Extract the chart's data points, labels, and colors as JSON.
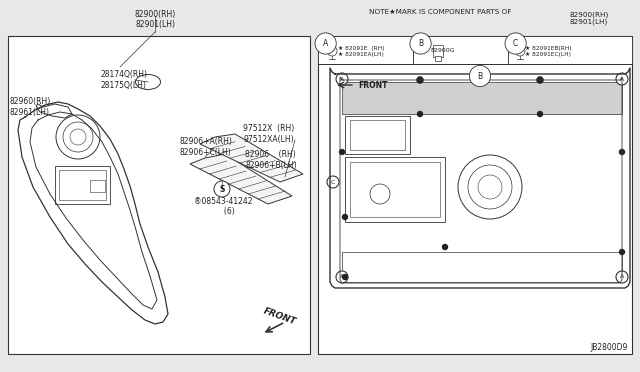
{
  "bg_color": "#e8e8e8",
  "diagram_bg": "#ffffff",
  "line_color": "#333333",
  "text_color": "#222222",
  "note_text": "NOTE★MARK IS COMPONENT PARTS OF",
  "note_parts": "82900(RH)\n82901(LH)",
  "part_label_main": "82900(RH)\n82901(LH)",
  "part_82960": "82960(RH)\n82961(LH)",
  "part_82906A": "82906+A(RH)\n82906+C(LH)",
  "part_97512": "97512X  (RH)\n97512XA(LH)",
  "part_82906": "82906    (RH)\n82906+B(LH)",
  "part_08543": "®08543-41242\n     (6)",
  "part_28174": "28174Q(RH)\n28175Q(LH)",
  "front_label": "FRONT",
  "diagram_id": "JB2800D9",
  "partA_label": "★ 82091E  (RH)\n★ 82091EA(LH)",
  "partB_label": "82900G",
  "partC_label": "★ 82091EB(RH)\n★ 82091EC(LH)"
}
